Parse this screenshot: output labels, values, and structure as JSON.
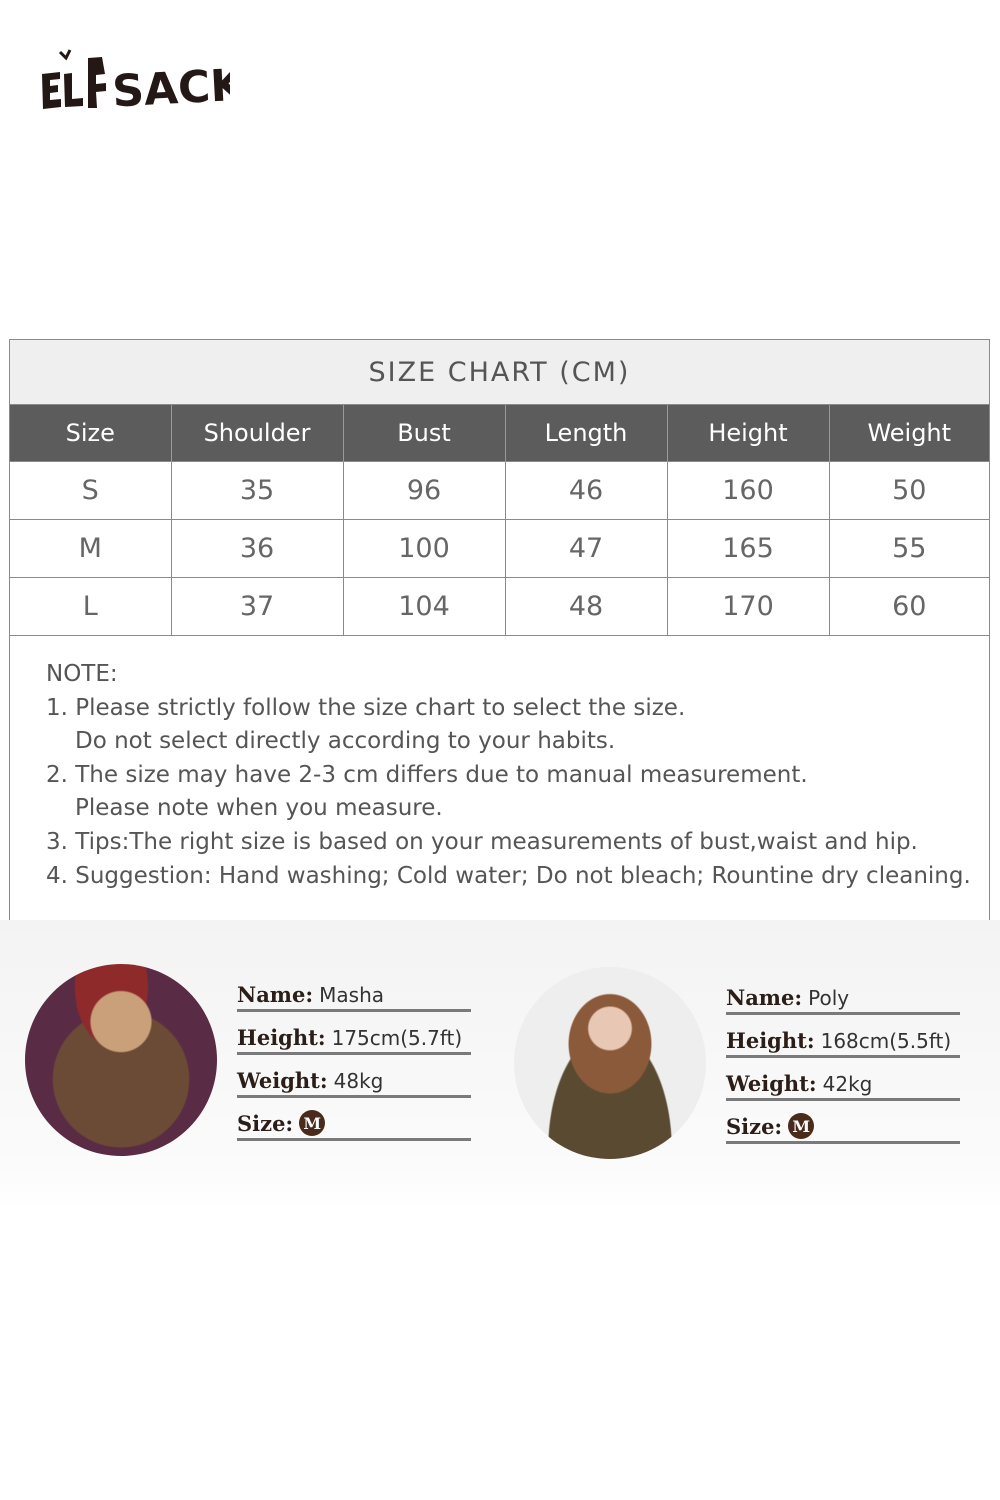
{
  "brand": {
    "logo_text": "ELFSACK"
  },
  "size_chart": {
    "title": "SIZE CHART (CM)",
    "headers": [
      "Size",
      "Shoulder",
      "Bust",
      "Length",
      "Height",
      "Weight"
    ],
    "rows": [
      [
        "S",
        "35",
        "96",
        "46",
        "160",
        "50"
      ],
      [
        "M",
        "36",
        "100",
        "47",
        "165",
        "55"
      ],
      [
        "L",
        "37",
        "104",
        "48",
        "170",
        "60"
      ]
    ]
  },
  "note": {
    "heading": "NOTE:",
    "lines": [
      "1. Please strictly follow the size chart to select the size.",
      "Do not select directly according to your habits.",
      "2. The size may have 2-3 cm differs due to manual measurement.",
      "Please note when you measure.",
      "3. Tips:The right size is based on your measurements of bust,waist and hip.",
      "4. Suggestion: Hand washing; Cold water; Do not bleach; Rountine dry cleaning."
    ]
  },
  "models": [
    {
      "name_label": "Name:",
      "name": "Masha",
      "height_label": "Height:",
      "height": "175cm(5.7ft)",
      "weight_label": "Weight:",
      "weight": "48kg",
      "size_label": "Size:",
      "size": "M"
    },
    {
      "name_label": "Name:",
      "name": "Poly",
      "height_label": "Height:",
      "height": "168cm(5.5ft)",
      "weight_label": "Weight:",
      "weight": "42kg",
      "size_label": "Size:",
      "size": "M"
    }
  ]
}
